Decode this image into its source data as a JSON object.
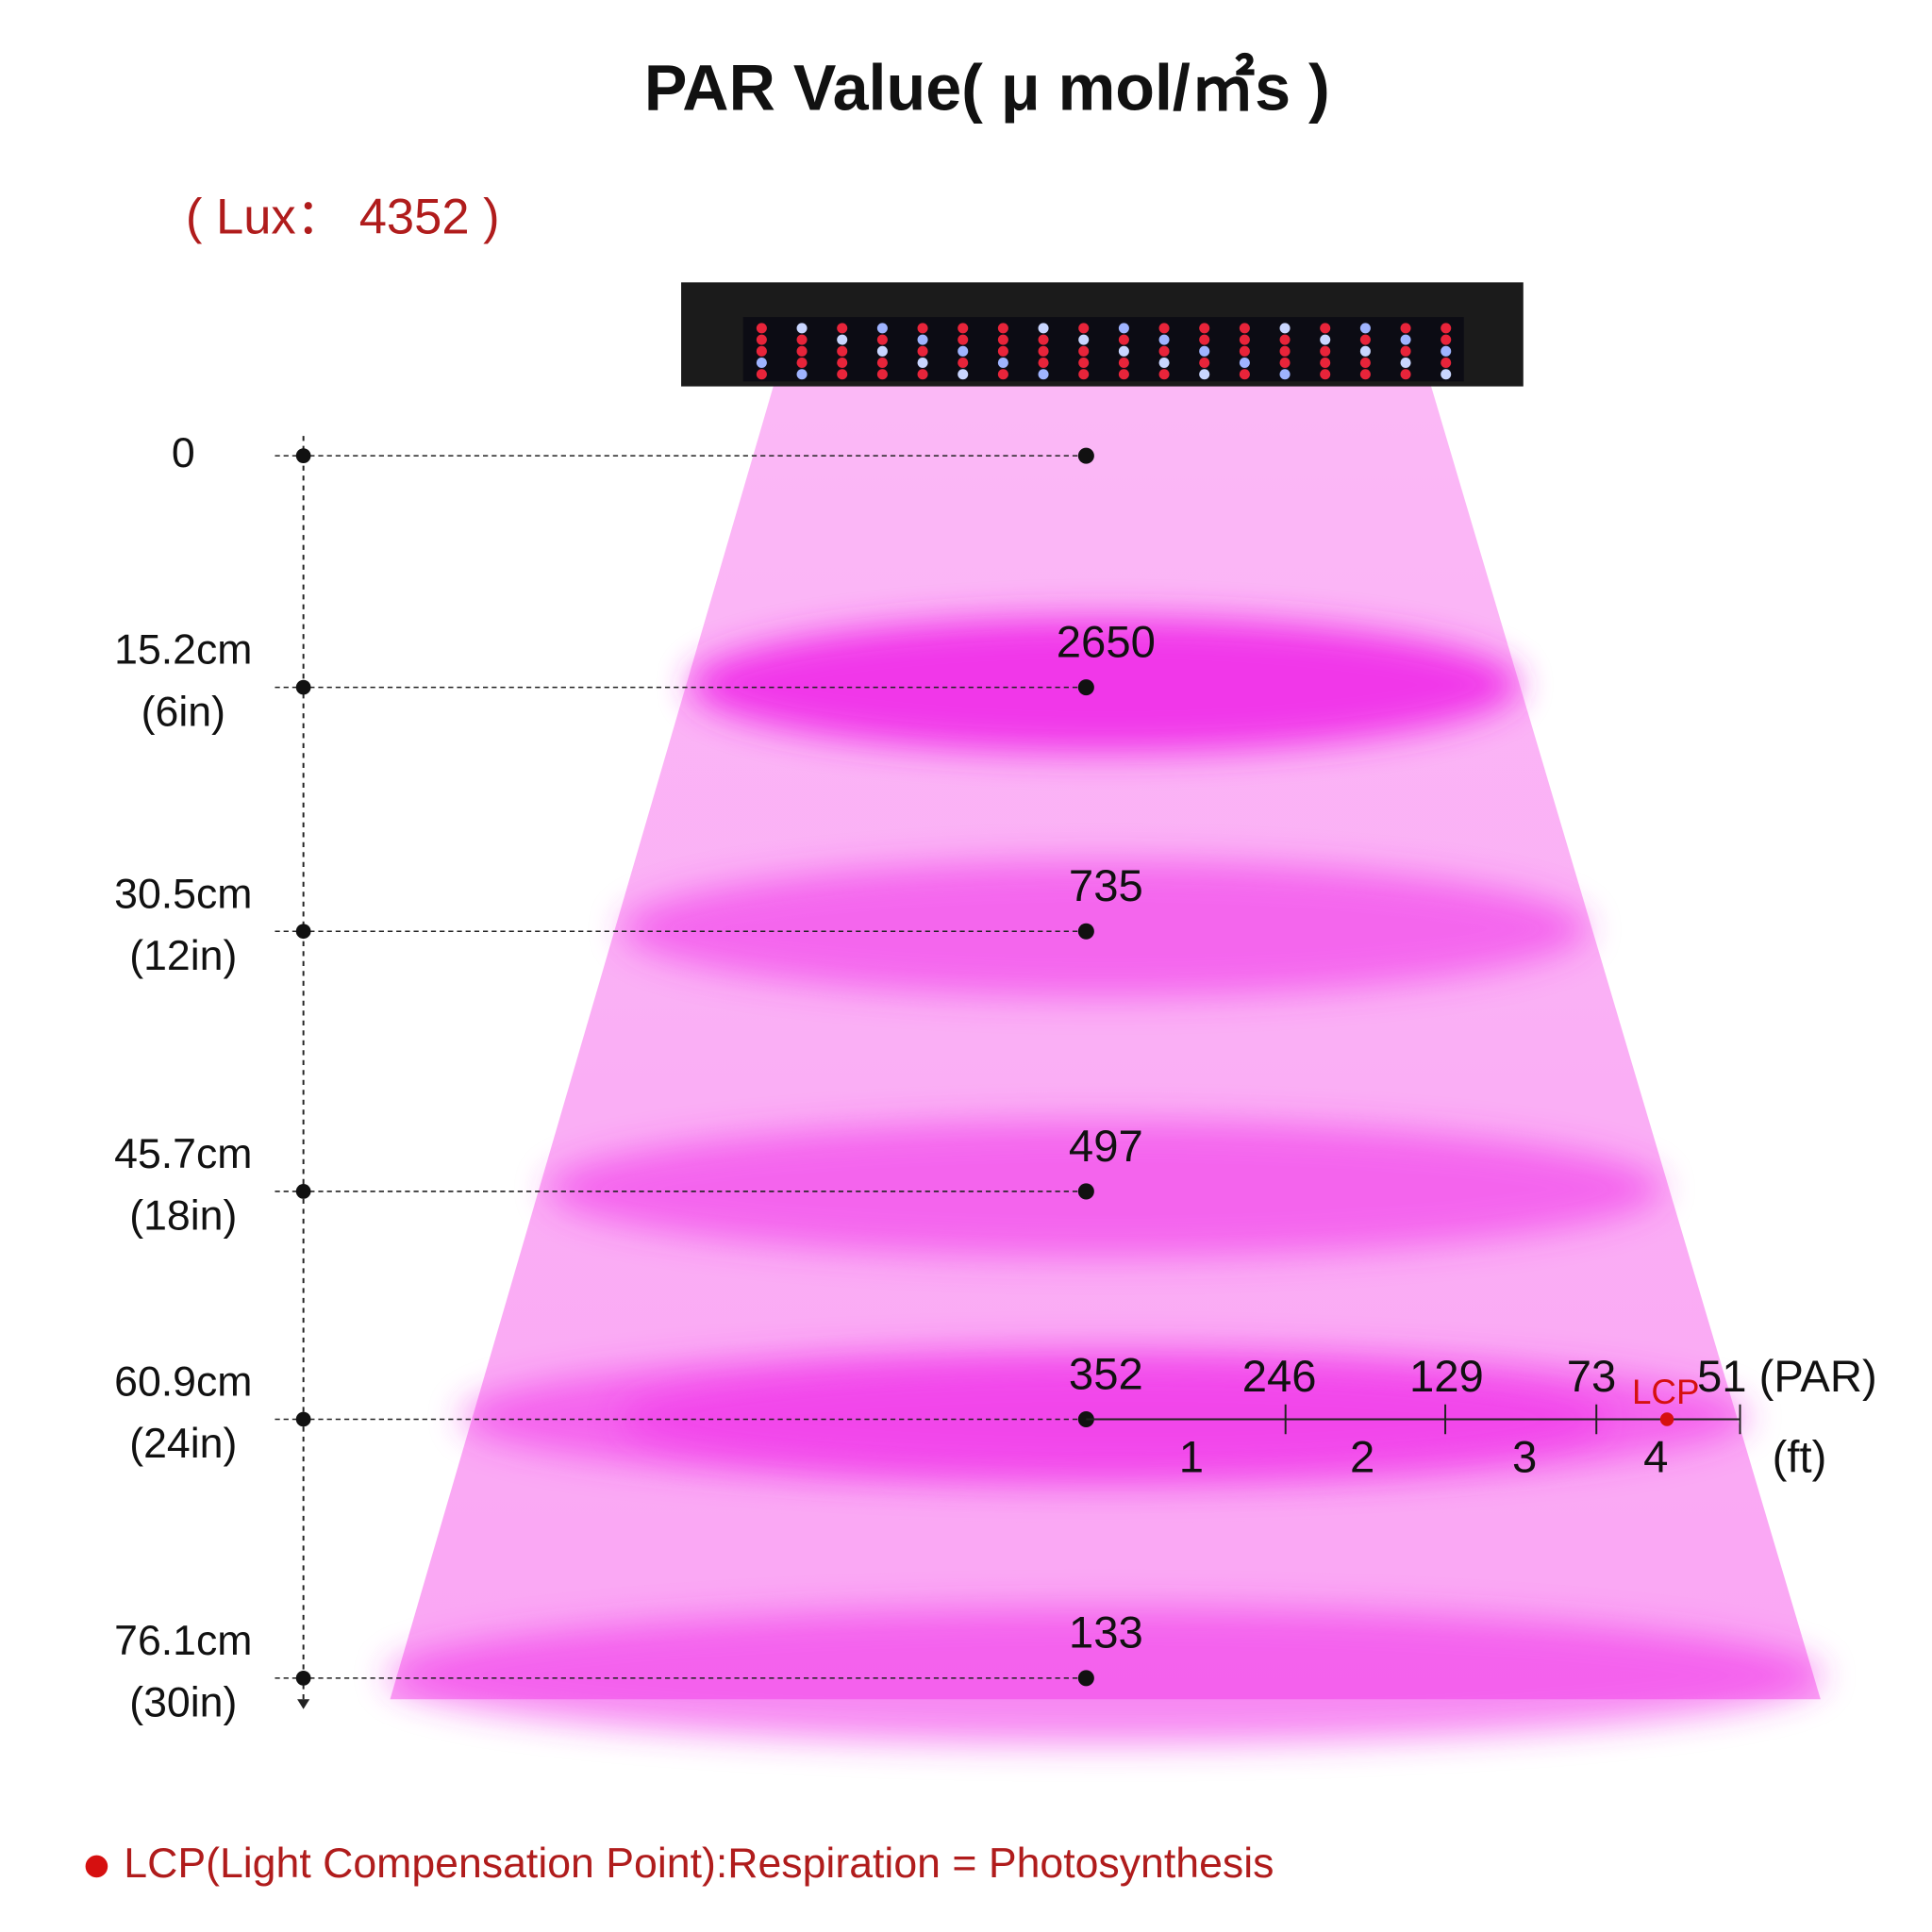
{
  "title": "PAR Value( μ mol/㎡s )",
  "lux": "( Lux： 4352 )",
  "levels": [
    {
      "lines": [
        "0"
      ]
    },
    {
      "lines": [
        "15.2cm",
        "(6in)"
      ],
      "par": "2650"
    },
    {
      "lines": [
        "30.5cm",
        "(12in)"
      ],
      "par": "735"
    },
    {
      "lines": [
        "45.7cm",
        "(18in)"
      ],
      "par": "497"
    },
    {
      "lines": [
        "60.9cm",
        "(24in)"
      ],
      "par": "352"
    },
    {
      "lines": [
        "76.1cm",
        "(30in)"
      ],
      "par": "133"
    }
  ],
  "spread": {
    "par": [
      "246",
      "129",
      "73",
      "51 (PAR)"
    ],
    "feet": [
      "1",
      "2",
      "3",
      "4"
    ],
    "unit": "(ft)",
    "lcp": "LCP"
  },
  "footnote": "LCP(Light Compensation Point):Respiration = Photosynthesis"
}
